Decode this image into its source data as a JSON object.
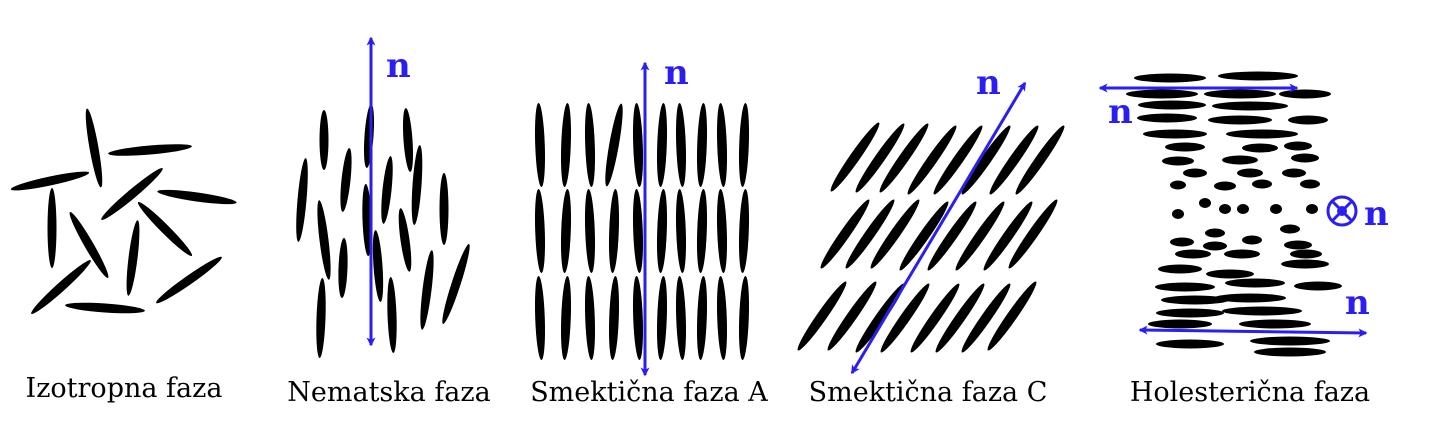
{
  "colors": {
    "molecule": "#000000",
    "director": "#2a1ff0",
    "background": "#ffffff",
    "caption": "#000000"
  },
  "director_symbol": "n",
  "panels": [
    {
      "id": "isotropic",
      "caption": "Izotropna faza"
    },
    {
      "id": "nematic",
      "caption": "Nematska faza"
    },
    {
      "id": "smectic-a",
      "caption": "Smektična faza A"
    },
    {
      "id": "smectic-c",
      "caption": "Smektična faza C"
    },
    {
      "id": "cholesteric",
      "caption": "Holesterična faza"
    }
  ]
}
